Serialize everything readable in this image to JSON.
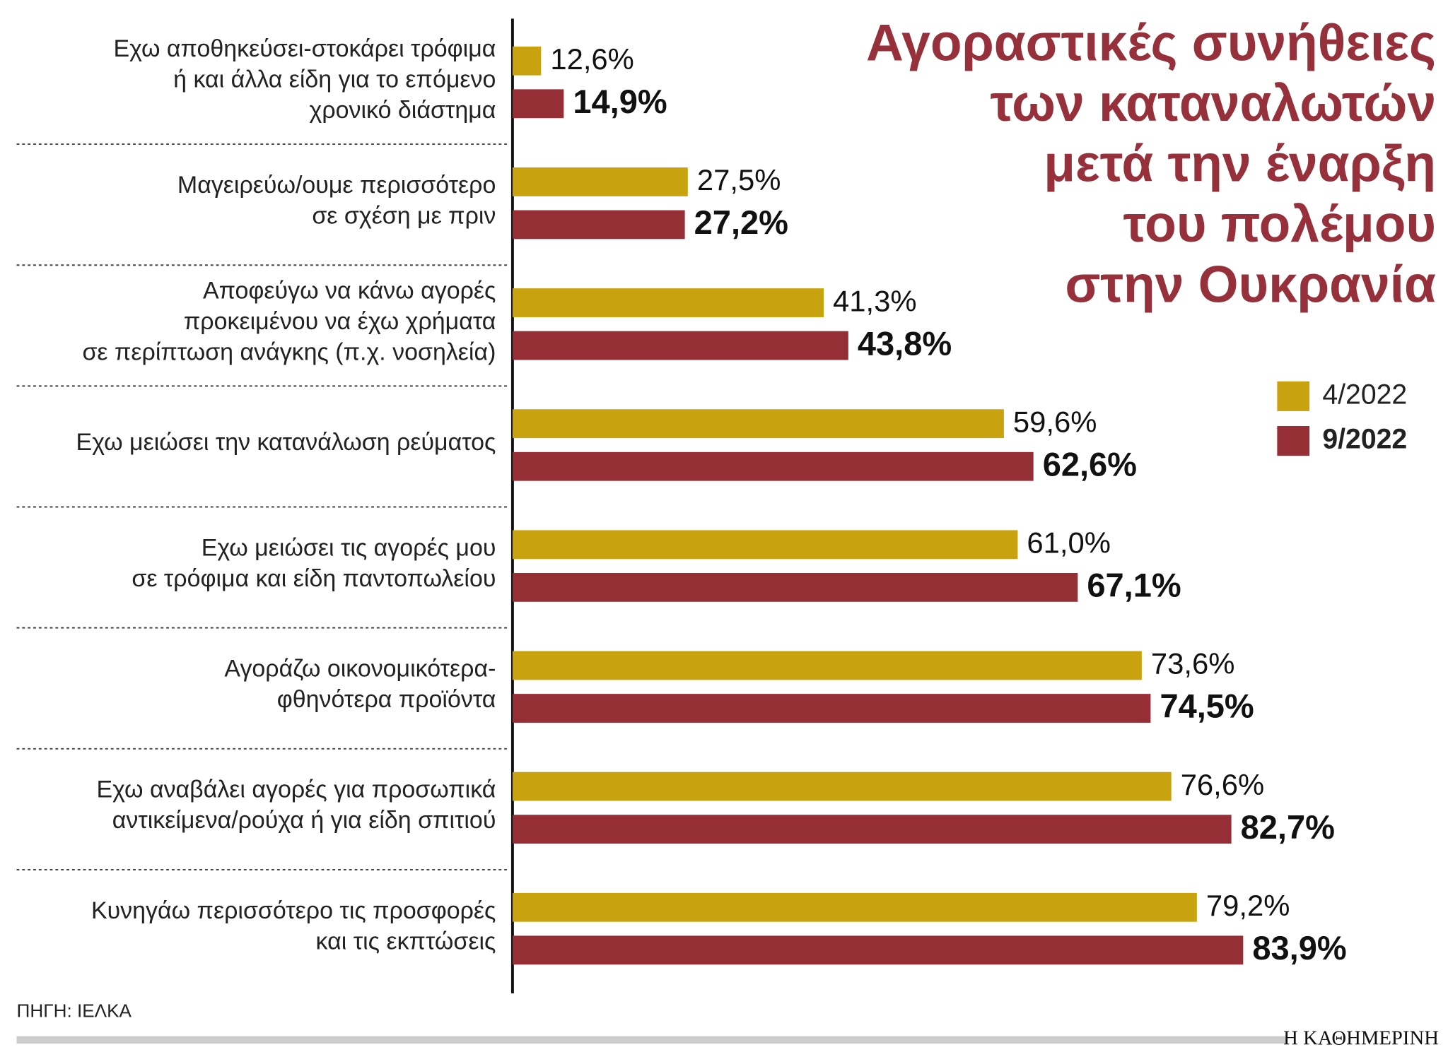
{
  "chart_data": {
    "type": "hbar",
    "title": [
      "Αγοραστικές συνήθειες",
      "των καταναλωτών",
      "μετά την έναρξη",
      "του πολέμου",
      "στην Ουκρανία"
    ],
    "categories": [
      [
        "Εχω αποθηκεύσει-στοκάρει τρόφιμα",
        "ή και άλλα είδη για το επόμενο",
        "χρονικό διάστημα"
      ],
      [
        "Μαγειρεύω/ουμε περισσότερο",
        "σε σχέση με πριν"
      ],
      [
        "Αποφεύγω να κάνω αγορές",
        "προκειμένου να έχω χρήματα",
        "σε περίπτωση ανάγκης (π.χ. νοσηλεία)"
      ],
      [
        "Εχω μειώσει την κατανάλωση ρεύματος"
      ],
      [
        "Εχω μειώσει τις αγορές μου",
        "σε τρόφιμα και είδη παντοπωλείου"
      ],
      [
        "Αγοράζω οικονομικότερα-",
        "φθηνότερα προϊόντα"
      ],
      [
        "Εχω αναβάλει αγορές για προσωπικά",
        "αντικείμενα/ρούχα ή για είδη σπιτιού"
      ],
      [
        "Κυνηγάω περισσότερο τις προσφορές",
        "και τις εκπτώσεις"
      ]
    ],
    "series": [
      {
        "name": "4/2022",
        "color": "#c9a20f",
        "values": [
          12.6,
          27.5,
          41.3,
          59.6,
          61.0,
          73.6,
          76.6,
          79.2
        ],
        "value_labels": [
          "12,6%",
          "27,5%",
          "41,3%",
          "59,6%",
          "61,0%",
          "73,6%",
          "76,6%",
          "79,2%"
        ]
      },
      {
        "name": "9/2022",
        "color": "#962e35",
        "values": [
          14.9,
          27.2,
          43.8,
          62.6,
          67.1,
          74.5,
          82.7,
          83.9
        ],
        "value_labels": [
          "14,9%",
          "27,2%",
          "43,8%",
          "62,6%",
          "67,1%",
          "74,5%",
          "82,7%",
          "83,9%"
        ]
      }
    ],
    "xlim": [
      9.7,
      104.7
    ],
    "title_color": "#96303a",
    "source": "ΠΗΓΗ: ΙΕΛΚΑ",
    "brand": "Η ΚΑΘΗΜΕΡΙΝΗ"
  }
}
